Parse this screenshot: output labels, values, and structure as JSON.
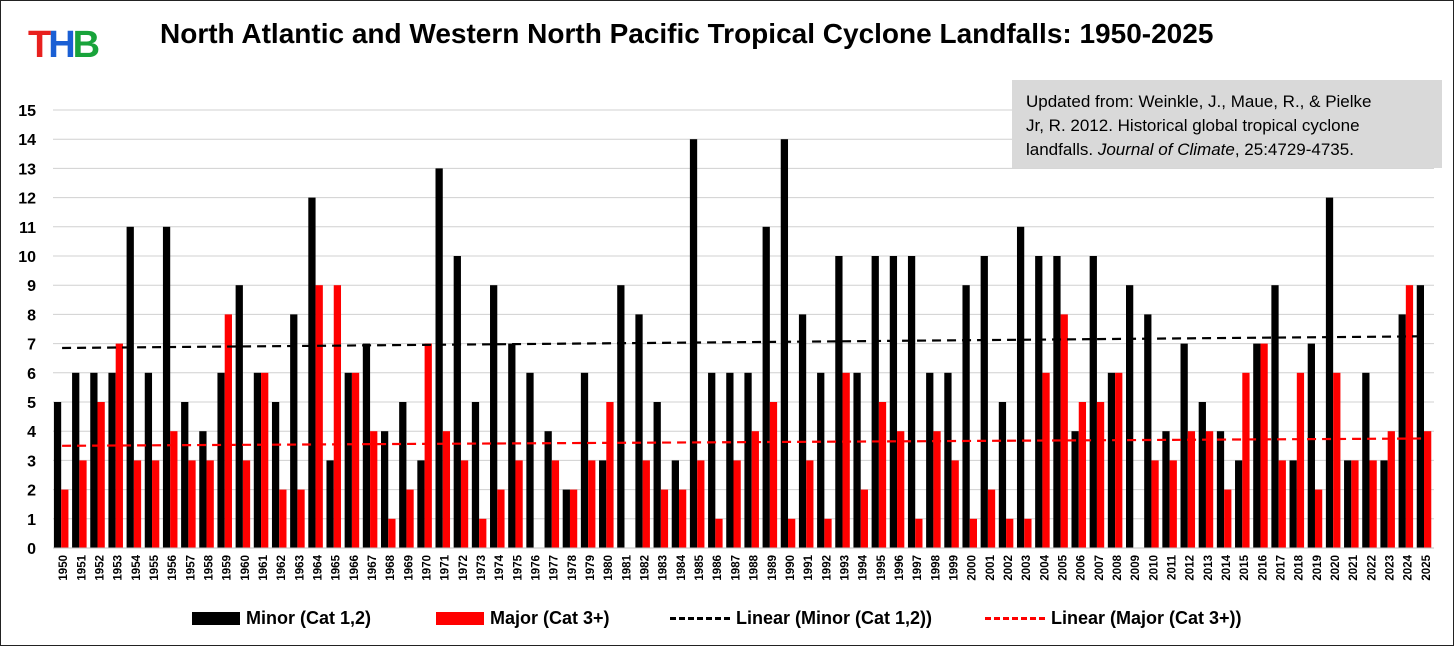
{
  "logo": {
    "letters": [
      "T",
      "H",
      "B"
    ],
    "colors": [
      "#e8201e",
      "#1a5fd4",
      "#18a33a"
    ]
  },
  "header": {
    "title": "North Atlantic and Western North Pacific Tropical Cyclone Landfalls: 1950-2025"
  },
  "note": {
    "line1": "Updated from: Weinkle, J., Maue, R., & Pielke",
    "line2": "Jr, R. 2012. Historical global tropical cyclone",
    "line3_prefix": "landfalls. ",
    "line3_journal": "Journal of Climate",
    "line3_suffix": ", 25:4729-4735."
  },
  "legend": {
    "minor": "Minor (Cat 1,2)",
    "major": "Major (Cat 3+)",
    "linear_minor": "Linear (Minor (Cat 1,2))",
    "linear_major": "Linear (Major (Cat 3+))"
  },
  "chart_data": {
    "type": "bar",
    "title": "North Atlantic and Western North Pacific Tropical Cyclone Landfalls: 1950-2025",
    "xlabel": "",
    "ylabel": "",
    "ylim": [
      0,
      15
    ],
    "yticks": [
      0,
      1,
      2,
      3,
      4,
      5,
      6,
      7,
      8,
      9,
      10,
      11,
      12,
      13,
      14,
      15
    ],
    "grid": true,
    "legend_position": "bottom",
    "categories": [
      "1950",
      "1951",
      "1952",
      "1953",
      "1954",
      "1955",
      "1956",
      "1957",
      "1958",
      "1959",
      "1960",
      "1961",
      "1962",
      "1963",
      "1964",
      "1965",
      "1966",
      "1967",
      "1968",
      "1969",
      "1970",
      "1971",
      "1972",
      "1973",
      "1974",
      "1975",
      "1976",
      "1977",
      "1978",
      "1979",
      "1980",
      "1981",
      "1982",
      "1983",
      "1984",
      "1985",
      "1986",
      "1987",
      "1988",
      "1989",
      "1990",
      "1991",
      "1992",
      "1993",
      "1994",
      "1995",
      "1996",
      "1997",
      "1998",
      "1999",
      "2000",
      "2001",
      "2002",
      "2003",
      "2004",
      "2005",
      "2006",
      "2007",
      "2008",
      "2009",
      "2010",
      "2011",
      "2012",
      "2013",
      "2014",
      "2015",
      "2016",
      "2017",
      "2018",
      "2019",
      "2020",
      "2021",
      "2022",
      "2023",
      "2024",
      "2025"
    ],
    "series": [
      {
        "name": "Minor (Cat 1,2)",
        "color": "#000000",
        "values": [
          5,
          6,
          6,
          6,
          11,
          6,
          11,
          5,
          4,
          6,
          9,
          6,
          5,
          8,
          12,
          3,
          6,
          7,
          4,
          5,
          3,
          13,
          10,
          5,
          9,
          7,
          6,
          4,
          2,
          6,
          3,
          9,
          8,
          5,
          3,
          14,
          6,
          6,
          6,
          11,
          14,
          8,
          6,
          10,
          6,
          10,
          10,
          10,
          6,
          6,
          9,
          10,
          5,
          11,
          10,
          10,
          4,
          10,
          6,
          9,
          8,
          4,
          7,
          5,
          4,
          3,
          7,
          9,
          3,
          7,
          12,
          3,
          6,
          3,
          8,
          9
        ]
      },
      {
        "name": "Major (Cat 3+)",
        "color": "#ff0000",
        "values": [
          2,
          3,
          5,
          7,
          3,
          3,
          4,
          3,
          3,
          8,
          3,
          6,
          2,
          2,
          9,
          9,
          6,
          4,
          1,
          2,
          7,
          4,
          3,
          1,
          2,
          3,
          0,
          3,
          2,
          3,
          5,
          0,
          3,
          2,
          2,
          3,
          1,
          3,
          4,
          5,
          1,
          3,
          1,
          6,
          2,
          5,
          4,
          1,
          4,
          3,
          1,
          2,
          1,
          1,
          6,
          8,
          5,
          5,
          6,
          0,
          3,
          3,
          4,
          4,
          2,
          6,
          7,
          3,
          6,
          2,
          6,
          3,
          3,
          4,
          9,
          4
        ]
      }
    ],
    "trendlines": [
      {
        "name": "Linear (Minor (Cat 1,2))",
        "color": "#000000",
        "start": 6.85,
        "end": 7.25
      },
      {
        "name": "Linear (Major (Cat 3+))",
        "color": "#ff0000",
        "start": 3.5,
        "end": 3.75
      }
    ]
  }
}
